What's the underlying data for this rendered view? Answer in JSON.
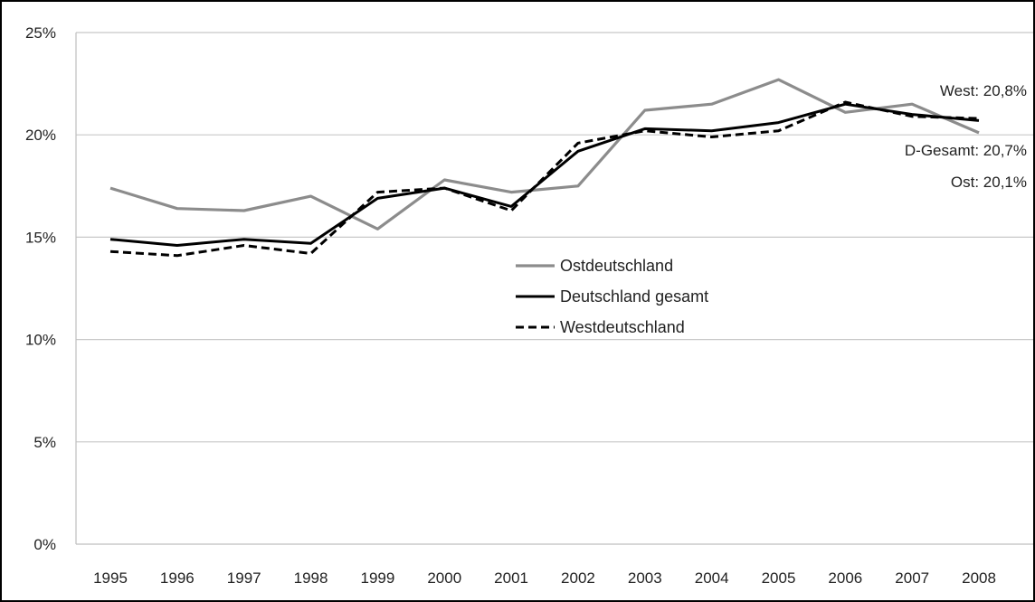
{
  "chart_data": {
    "type": "line",
    "title": "",
    "xlabel": "",
    "ylabel": "",
    "x": [
      "1995",
      "1996",
      "1997",
      "1998",
      "1999",
      "2000",
      "2001",
      "2002",
      "2003",
      "2004",
      "2005",
      "2006",
      "2007",
      "2008"
    ],
    "ylim": [
      0,
      25
    ],
    "y_ticks": [
      "0%",
      "5%",
      "10%",
      "15%",
      "20%",
      "25%"
    ],
    "grid": "horizontal",
    "legend_position": "center",
    "series": [
      {
        "name": "Ostdeutschland",
        "color": "#8c8c8c",
        "style": "solid",
        "values": [
          17.4,
          16.4,
          16.3,
          17.0,
          15.4,
          17.8,
          17.2,
          17.5,
          21.2,
          21.5,
          22.7,
          21.1,
          21.5,
          20.1
        ]
      },
      {
        "name": "Deutschland gesamt",
        "color": "#000000",
        "style": "solid",
        "values": [
          14.9,
          14.6,
          14.9,
          14.7,
          16.9,
          17.4,
          16.5,
          19.2,
          20.3,
          20.2,
          20.6,
          21.5,
          21.0,
          20.7
        ]
      },
      {
        "name": "Westdeutschland",
        "color": "#000000",
        "style": "dashed",
        "values": [
          14.3,
          14.1,
          14.6,
          14.2,
          17.2,
          17.4,
          16.3,
          19.6,
          20.2,
          19.9,
          20.2,
          21.6,
          20.9,
          20.8
        ]
      }
    ],
    "annotations": [
      {
        "name": "end-label-west",
        "text": "West: 20,8%"
      },
      {
        "name": "end-label-gesamt",
        "text": "D-Gesamt: 20,7%"
      },
      {
        "name": "end-label-ost",
        "text": "Ost: 20,1%"
      }
    ]
  }
}
